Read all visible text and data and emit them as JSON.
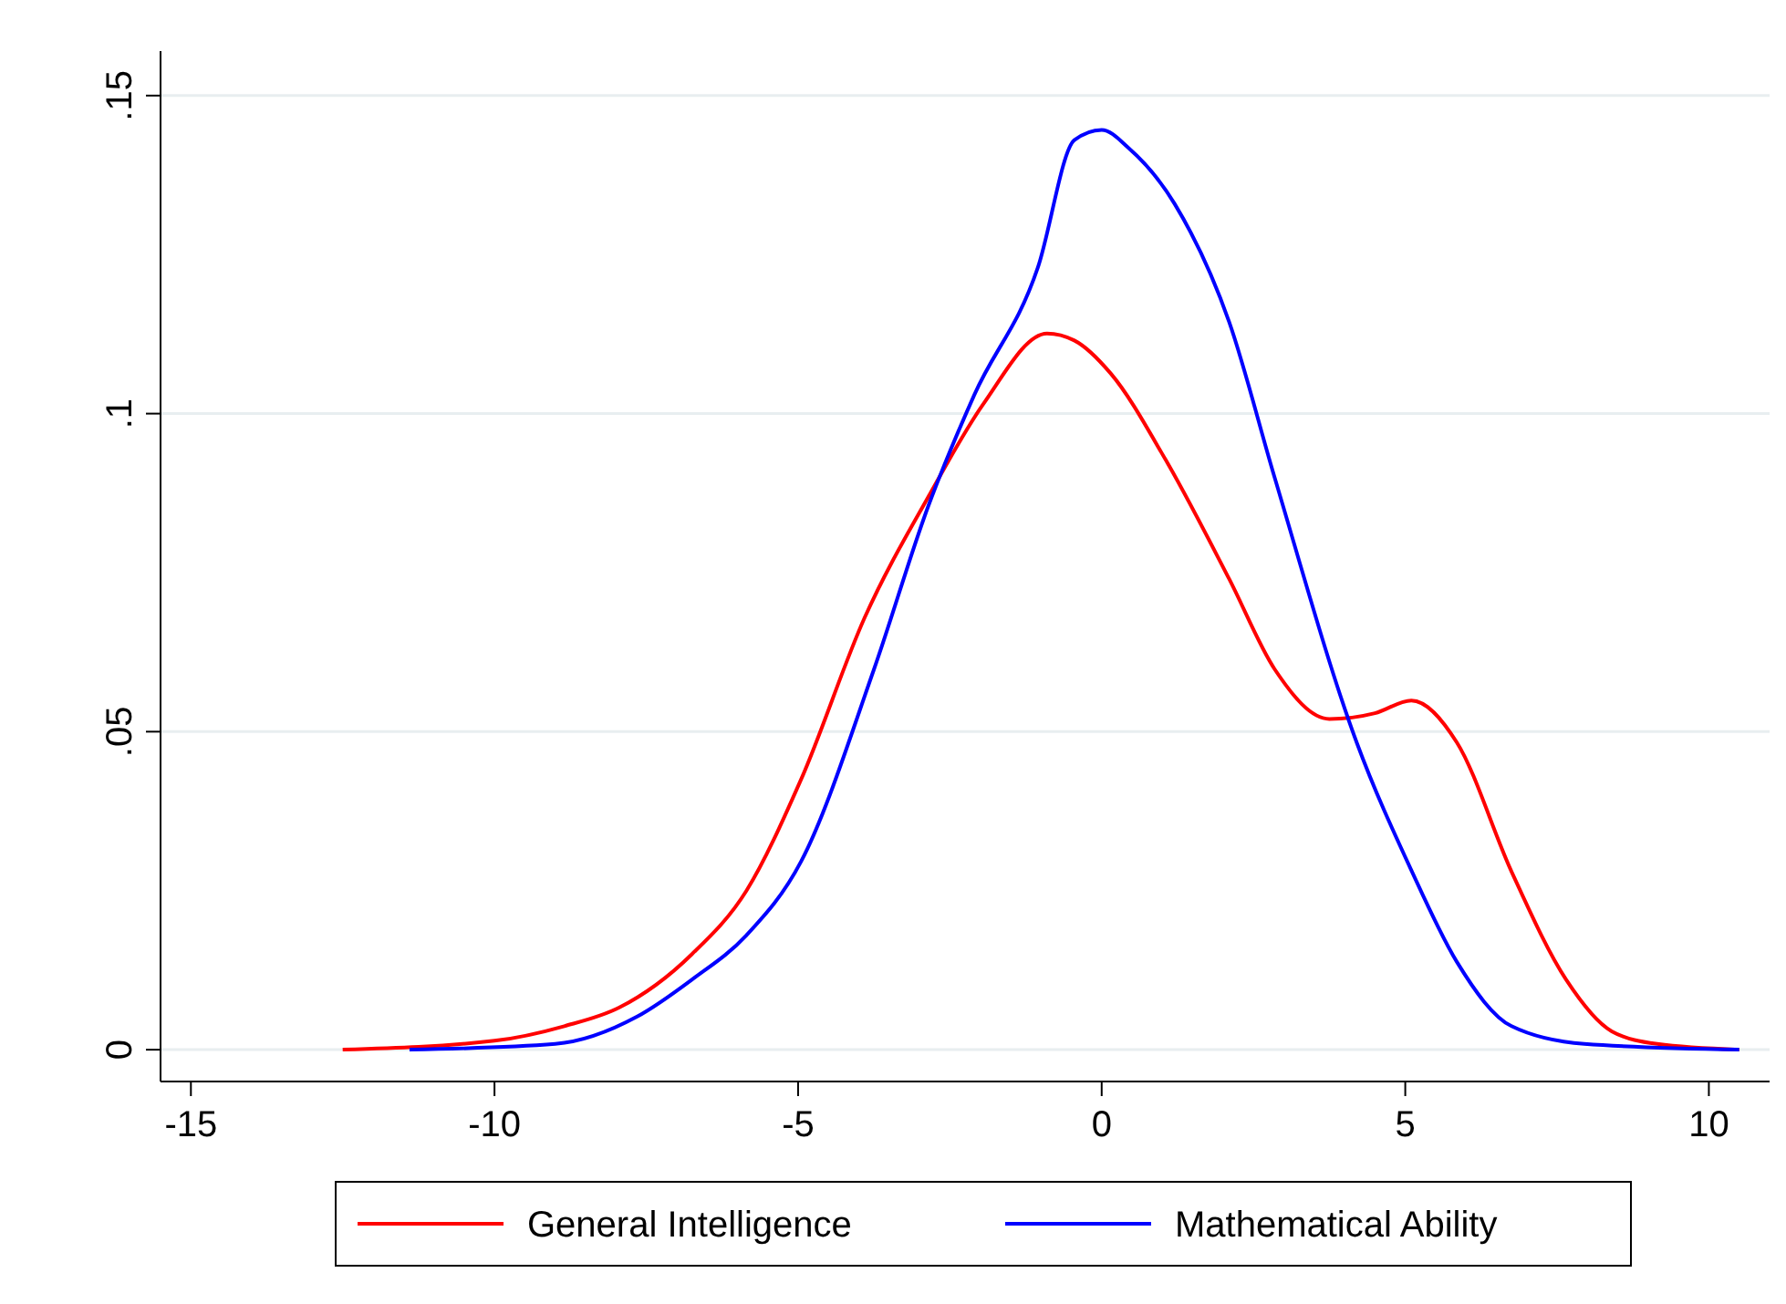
{
  "chart_data": {
    "type": "line",
    "xlim": [
      -15.5,
      11
    ],
    "ylim": [
      -0.005,
      0.157
    ],
    "xticks": [
      -15,
      -10,
      -5,
      0,
      5,
      10
    ],
    "yticks": [
      {
        "value": 0,
        "label": "0"
      },
      {
        "value": 0.05,
        "label": ".05"
      },
      {
        "value": 0.1,
        "label": ".1"
      },
      {
        "value": 0.15,
        "label": ".15"
      }
    ],
    "grid": "y",
    "legend": "bottom",
    "marker": "none",
    "line_style": "solid",
    "series": [
      {
        "name": "General Intelligence",
        "color": "#ff0000",
        "x": [
          -12.5,
          -10,
          -8.85,
          -7.95,
          -6.75,
          -5.85,
          -4.95,
          -3.9,
          -2.85,
          -1.95,
          -0.9,
          -0.45,
          0.15,
          1.05,
          2.1,
          2.85,
          3.75,
          4.5,
          5.1,
          5.85,
          6.75,
          7.65,
          8.4,
          9.15,
          10.5
        ],
        "values": [
          0,
          0.0014,
          0.0037,
          0.0066,
          0.015,
          0.025,
          0.0425,
          0.068,
          0.087,
          0.1015,
          0.1126,
          0.1115,
          0.1063,
          0.0928,
          0.074,
          0.0598,
          0.052,
          0.0529,
          0.0549,
          0.0483,
          0.028,
          0.011,
          0.0029,
          0.0009,
          0
        ]
      },
      {
        "name": "Mathematical Ability",
        "color": "#0000ff",
        "x": [
          -11.4,
          -9,
          -7.65,
          -6.75,
          -5.85,
          -4.95,
          -3.75,
          -2.85,
          -2.1,
          -1.05,
          -0.45,
          0,
          0.45,
          1.2,
          2.1,
          2.85,
          4.2,
          5.1,
          5.85,
          6.75,
          7.95,
          10.5
        ],
        "values": [
          0,
          0.0009,
          0.0052,
          0.011,
          0.018,
          0.0296,
          0.0598,
          0.0856,
          0.1029,
          0.123,
          0.143,
          0.1446,
          0.1417,
          0.133,
          0.1144,
          0.0899,
          0.0483,
          0.0282,
          0.0138,
          0.0037,
          0.0009,
          0
        ]
      }
    ]
  }
}
